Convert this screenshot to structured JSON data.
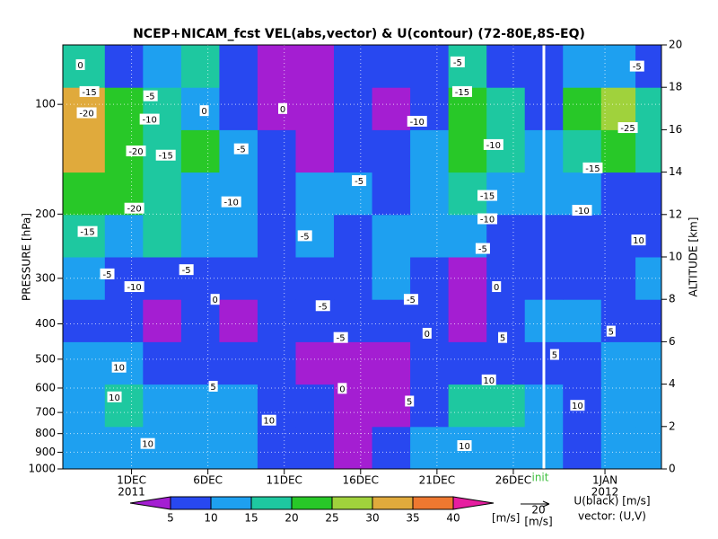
{
  "chart_data": {
    "type": "heatmap",
    "title": "NCEP+NICAM_fcst VEL(abs,vector) & U(contour)  (72-80E,8S-EQ)",
    "y_label": "PRESSURE [hPa]",
    "y2_label": "ALTITUDE [km]",
    "xlim": [
      -4.5,
      34.7
    ],
    "xticks": [
      {
        "value": 0,
        "label": "1DEC"
      },
      {
        "value": 5,
        "label": "6DEC"
      },
      {
        "value": 10,
        "label": "11DEC"
      },
      {
        "value": 15,
        "label": "16DEC"
      },
      {
        "value": 20,
        "label": "21DEC"
      },
      {
        "value": 25,
        "label": "26DEC"
      },
      {
        "value": 31,
        "label": "1JAN"
      }
    ],
    "year_labels": [
      {
        "value": 0,
        "label": "2011"
      },
      {
        "value": 31,
        "label": "2012"
      }
    ],
    "yscale": "log",
    "ylim": [
      1000,
      68.7
    ],
    "yticks": [
      100,
      200,
      300,
      400,
      500,
      600,
      700,
      800,
      900,
      1000
    ],
    "y2lim": [
      0,
      20
    ],
    "y2ticks": [
      0,
      2,
      4,
      6,
      8,
      10,
      12,
      14,
      16,
      18,
      20
    ],
    "grid": true,
    "init_line": {
      "value": 27,
      "label": "init"
    },
    "colorbar": {
      "levels": [
        5,
        10,
        15,
        20,
        25,
        30,
        35,
        40
      ],
      "colors": [
        "#a41ed2",
        "#2848f0",
        "#1ea0f0",
        "#1ec8a0",
        "#28c828",
        "#a0d23c",
        "#e0aa3c",
        "#ee7830",
        "#e61ea0"
      ],
      "unit": "[m/s]"
    },
    "field": {
      "x": [
        -3,
        -0.5,
        2,
        4.5,
        7,
        9.5,
        12,
        14.5,
        17,
        19.5,
        22,
        24.5,
        27,
        29.5,
        32,
        34
      ],
      "y": [
        1,
        3,
        5,
        7,
        9,
        11,
        13,
        15,
        17,
        19
      ],
      "values": [
        [
          13,
          12,
          12,
          12,
          12,
          8,
          8,
          4,
          8,
          12,
          12,
          12,
          12,
          8,
          12,
          12
        ],
        [
          12,
          16,
          12,
          12,
          12,
          8,
          8,
          3,
          4,
          8,
          17,
          17,
          12,
          8,
          12,
          12
        ],
        [
          12,
          12,
          8,
          8,
          8,
          8,
          4,
          4,
          4,
          8,
          8,
          8,
          8,
          8,
          12,
          12
        ],
        [
          8,
          8,
          4,
          8,
          4,
          8,
          8,
          8,
          8,
          8,
          4,
          8,
          12,
          12,
          8,
          8
        ],
        [
          12,
          8,
          8,
          8,
          8,
          7,
          8,
          8,
          11,
          8,
          4,
          8,
          8,
          8,
          8,
          12
        ],
        [
          17,
          12,
          16,
          12,
          12,
          8,
          12,
          8,
          12,
          12,
          12,
          8,
          8,
          8,
          8,
          8
        ],
        [
          22,
          22,
          17,
          12,
          12,
          8,
          12,
          12,
          8,
          12,
          17,
          13,
          12,
          12,
          8,
          8
        ],
        [
          33,
          22,
          18,
          22,
          13,
          8,
          4,
          8,
          8,
          12,
          23,
          17,
          12,
          17,
          23,
          17
        ],
        [
          32,
          22,
          17,
          12,
          8,
          4,
          3,
          8,
          4,
          8,
          22,
          17,
          8,
          22,
          27,
          17
        ],
        [
          17,
          8,
          12,
          17,
          8,
          4,
          3,
          7,
          7,
          8,
          17,
          8,
          8,
          12,
          12,
          8
        ]
      ]
    },
    "contour_labels": [
      {
        "value": 0,
        "x": -3.35,
        "y": 19.07
      },
      {
        "value": -15,
        "x": -2.76,
        "y": 17.8
      },
      {
        "value": -20,
        "x": -2.94,
        "y": 16.8
      },
      {
        "value": -10,
        "x": 1.18,
        "y": 16.5
      },
      {
        "value": -5,
        "x": 1.24,
        "y": 17.6
      },
      {
        "value": 0,
        "x": 4.76,
        "y": 16.9
      },
      {
        "value": -20,
        "x": 0.29,
        "y": 15.0
      },
      {
        "value": -15,
        "x": 2.24,
        "y": 14.8
      },
      {
        "value": -5,
        "x": 7.18,
        "y": 15.1
      },
      {
        "value": -10,
        "x": 6.53,
        "y": 12.6
      },
      {
        "value": -20,
        "x": 0.18,
        "y": 12.3
      },
      {
        "value": -15,
        "x": -2.88,
        "y": 11.2
      },
      {
        "value": -5,
        "x": 11.35,
        "y": 11.0
      },
      {
        "value": -5,
        "x": -1.59,
        "y": 9.2
      },
      {
        "value": -10,
        "x": 0.18,
        "y": 8.6
      },
      {
        "value": -5,
        "x": 3.59,
        "y": 9.4
      },
      {
        "value": 0,
        "x": 5.47,
        "y": 8.0
      },
      {
        "value": -5,
        "x": 12.53,
        "y": 7.7
      },
      {
        "value": -5,
        "x": 13.7,
        "y": 6.2
      },
      {
        "value": 0,
        "x": 19.35,
        "y": 6.4
      },
      {
        "value": -5,
        "x": 18.3,
        "y": 8.0
      },
      {
        "value": -10,
        "x": 18.7,
        "y": 16.4
      },
      {
        "value": -5,
        "x": 14.9,
        "y": 13.6
      },
      {
        "value": 0,
        "x": 9.9,
        "y": 17.0
      },
      {
        "value": -5,
        "x": 21.35,
        "y": 19.2
      },
      {
        "value": -15,
        "x": 21.65,
        "y": 17.8
      },
      {
        "value": -10,
        "x": 23.7,
        "y": 15.3
      },
      {
        "value": -15,
        "x": 23.3,
        "y": 12.9
      },
      {
        "value": -10,
        "x": 23.3,
        "y": 11.8
      },
      {
        "value": -5,
        "x": 23.0,
        "y": 10.4
      },
      {
        "value": 0,
        "x": 23.9,
        "y": 8.6
      },
      {
        "value": 5,
        "x": 24.3,
        "y": 6.2
      },
      {
        "value": 10,
        "x": 23.4,
        "y": 4.2
      },
      {
        "value": 10,
        "x": 21.8,
        "y": 1.1
      },
      {
        "value": 5,
        "x": 18.2,
        "y": 3.2
      },
      {
        "value": 0,
        "x": 13.8,
        "y": 3.8
      },
      {
        "value": 5,
        "x": 5.35,
        "y": 3.9
      },
      {
        "value": 10,
        "x": 9.0,
        "y": 2.3
      },
      {
        "value": 10,
        "x": -0.82,
        "y": 4.8
      },
      {
        "value": 10,
        "x": -1.12,
        "y": 3.4
      },
      {
        "value": 10,
        "x": 1.06,
        "y": 1.2
      },
      {
        "value": -5,
        "x": 33.1,
        "y": 19.0
      },
      {
        "value": -25,
        "x": 32.5,
        "y": 16.1
      },
      {
        "value": -15,
        "x": 30.2,
        "y": 14.2
      },
      {
        "value": -10,
        "x": 29.5,
        "y": 12.2
      },
      {
        "value": 10,
        "x": 33.2,
        "y": 10.8
      },
      {
        "value": 5,
        "x": 31.4,
        "y": 6.5
      },
      {
        "value": 10,
        "x": 29.2,
        "y": 3.0
      },
      {
        "value": 5,
        "x": 27.7,
        "y": 5.4
      }
    ],
    "vector_reference": {
      "value": 20,
      "unit": "[m/s]"
    },
    "notes": [
      "U(black) [m/s]",
      "vector: (U,V)"
    ]
  }
}
